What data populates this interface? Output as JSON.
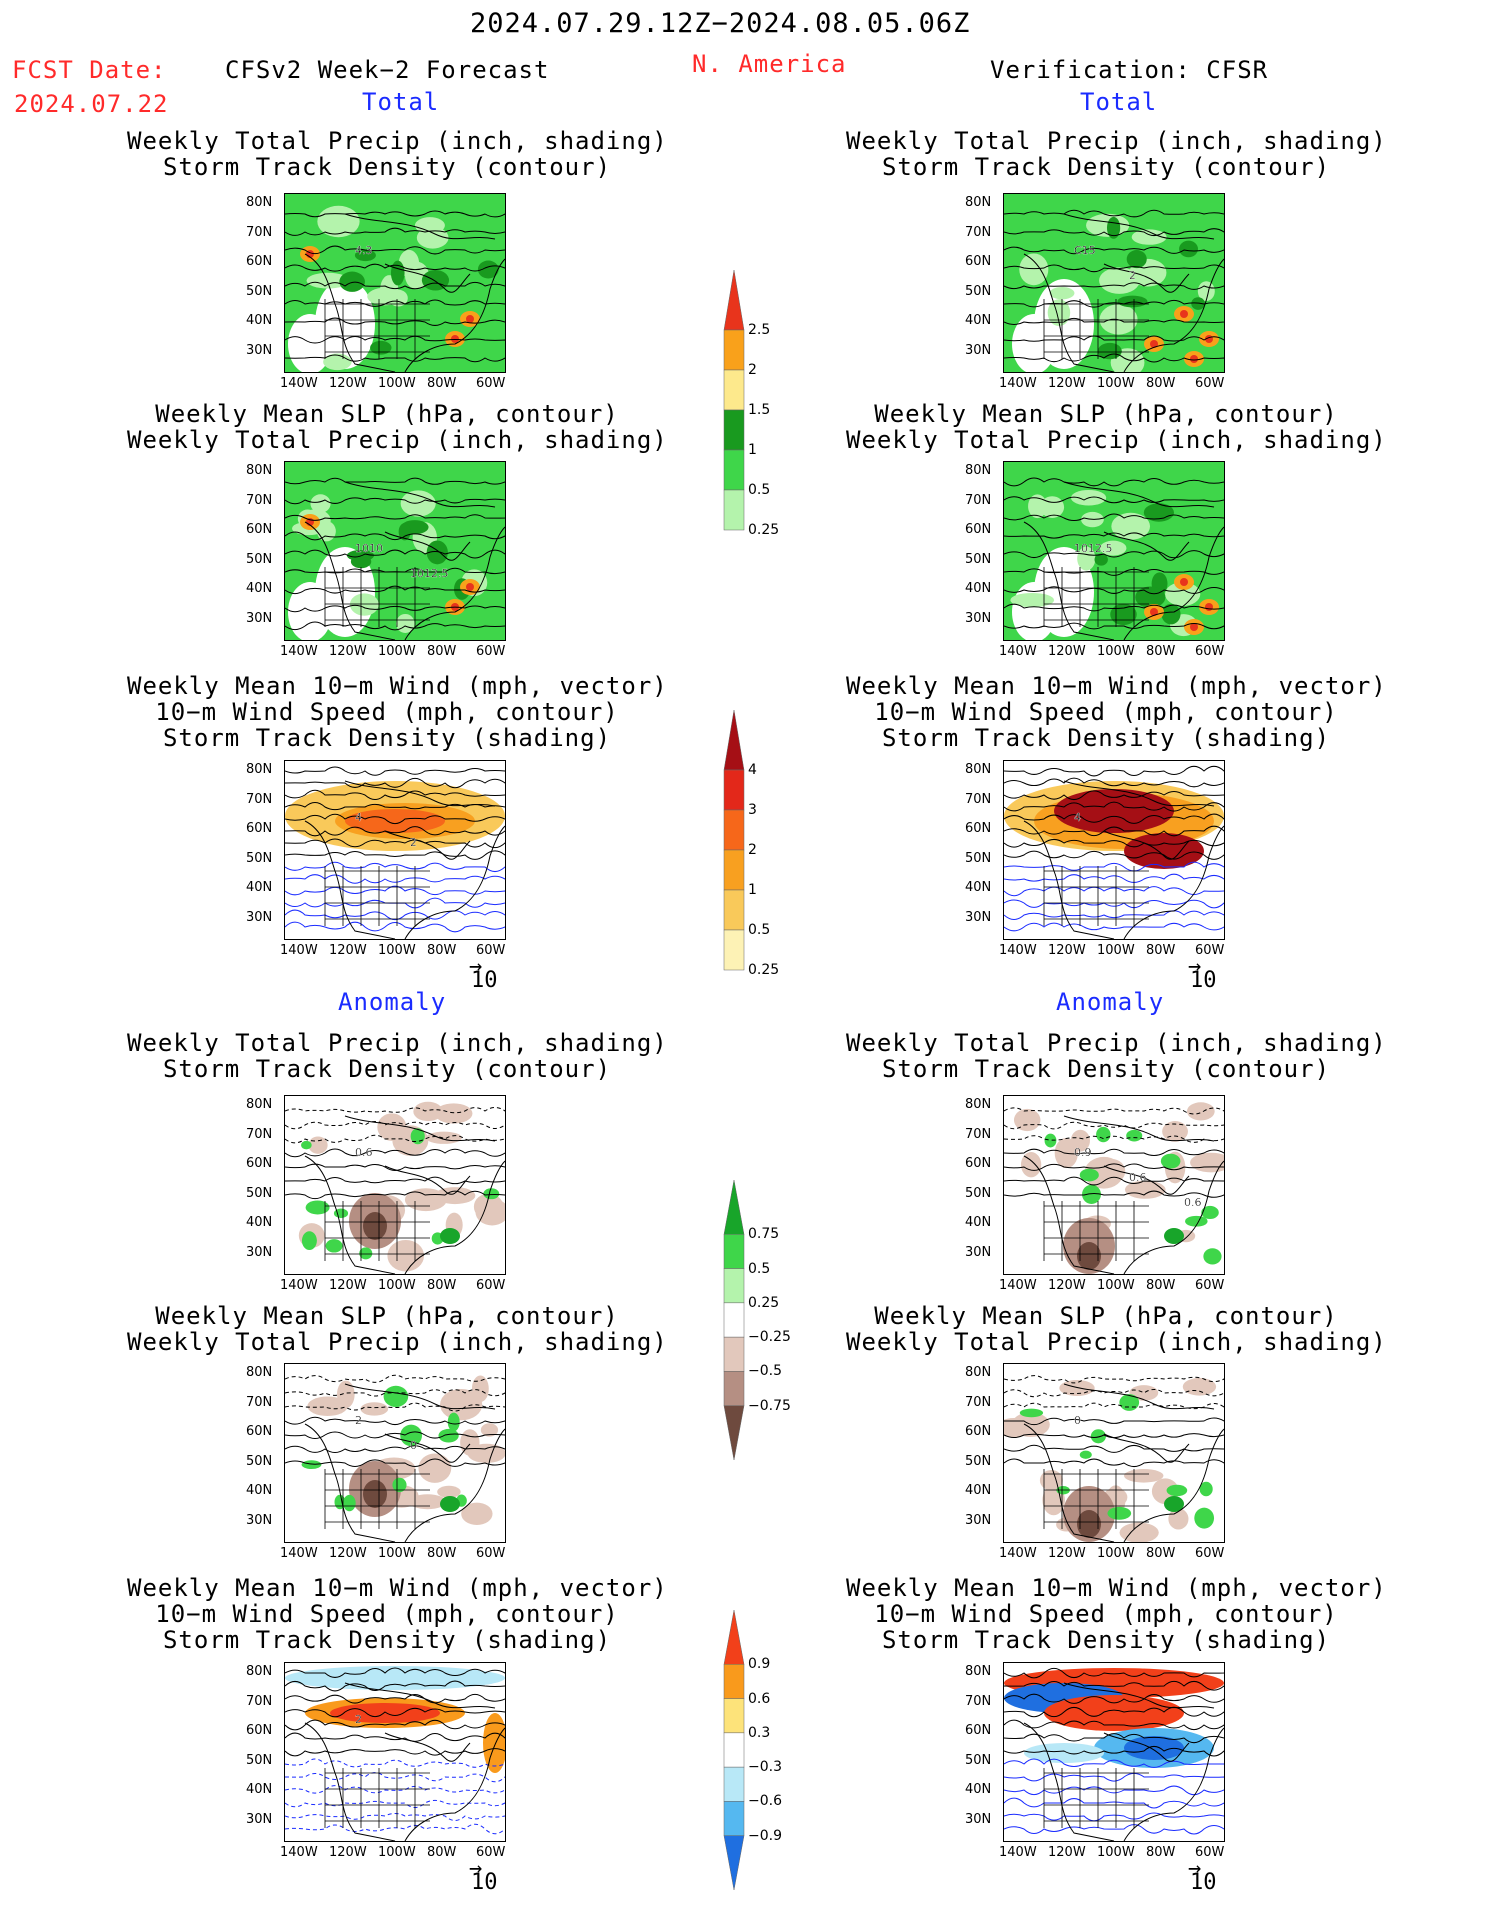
{
  "header": {
    "period": "2024.07.29.12Z−2024.08.05.06Z",
    "fcst_label": "FCST Date:",
    "fcst_date": "2024.07.22",
    "left_title": "CFSv2 Week−2 Forecast",
    "region": "N. America",
    "right_title": "Verification: CFSR"
  },
  "sections": {
    "total": "Total",
    "anomaly": "Anomaly"
  },
  "titles": {
    "precip_storm": [
      "Weekly Total Precip (inch, shading)",
      "Storm Track Density (contour)"
    ],
    "slp_precip": [
      "Weekly Mean SLP (hPa, contour)",
      "Weekly Total Precip (inch, shading)"
    ],
    "wind": [
      "Weekly Mean 10−m Wind (mph, vector)",
      "10−m Wind Speed (mph, contour)",
      "Storm Track Density (shading)"
    ]
  },
  "axes": {
    "lat_ticks": [
      "80N",
      "70N",
      "60N",
      "50N",
      "40N",
      "30N"
    ],
    "lon_ticks": [
      "140W",
      "120W",
      "100W",
      "80W",
      "60W"
    ]
  },
  "vector_ref": "10",
  "colorbars": {
    "precip_total": {
      "labels": [
        "2.5",
        "2",
        "1.5",
        "1",
        "0.5",
        "0.25"
      ],
      "colors": [
        "#e8341c",
        "#f9a11b",
        "#fde98c",
        "#199a1f",
        "#3fd64a",
        "#b4f3ac"
      ]
    },
    "storm_total": {
      "labels": [
        "4",
        "3",
        "2",
        "1",
        "0.5",
        "0.25"
      ],
      "colors": [
        "#a50f15",
        "#e3281a",
        "#f6671a",
        "#f8a020",
        "#f9c95a",
        "#fdf2b5"
      ]
    },
    "precip_anom": {
      "labels": [
        "0.75",
        "0.5",
        "0.25",
        "−0.25",
        "−0.5",
        "−0.75"
      ],
      "colors": [
        "#18a52a",
        "#3fd64a",
        "#b4f3ac",
        "#ffffff",
        "#e2c8bc",
        "#b58f83",
        "#6e4a3e"
      ]
    },
    "storm_anom": {
      "labels": [
        "0.9",
        "0.6",
        "0.3",
        "−0.3",
        "−0.6",
        "−0.9"
      ],
      "colors": [
        "#f2401a",
        "#f99a1c",
        "#fde37a",
        "#ffffff",
        "#b8e8f7",
        "#55b8f0",
        "#1f6fe0"
      ]
    }
  },
  "panel_labels": {
    "l1": [
      "4.3"
    ],
    "r1": [
      "C15",
      "2"
    ],
    "l2": [
      "1010",
      "1012.5"
    ],
    "r2": [
      "1012.5"
    ],
    "l3": [
      "4",
      "2"
    ],
    "r3": [
      "4"
    ],
    "l4": [
      "0.6"
    ],
    "r4": [
      "0.9",
      "0.6",
      "0.6"
    ],
    "l5": [
      "2",
      "0"
    ],
    "r5": [
      "0"
    ],
    "l6": [
      "2"
    ],
    "r6": []
  },
  "colors": {
    "red_text": "#ff2a2a",
    "blue_text": "#1a2bff"
  }
}
